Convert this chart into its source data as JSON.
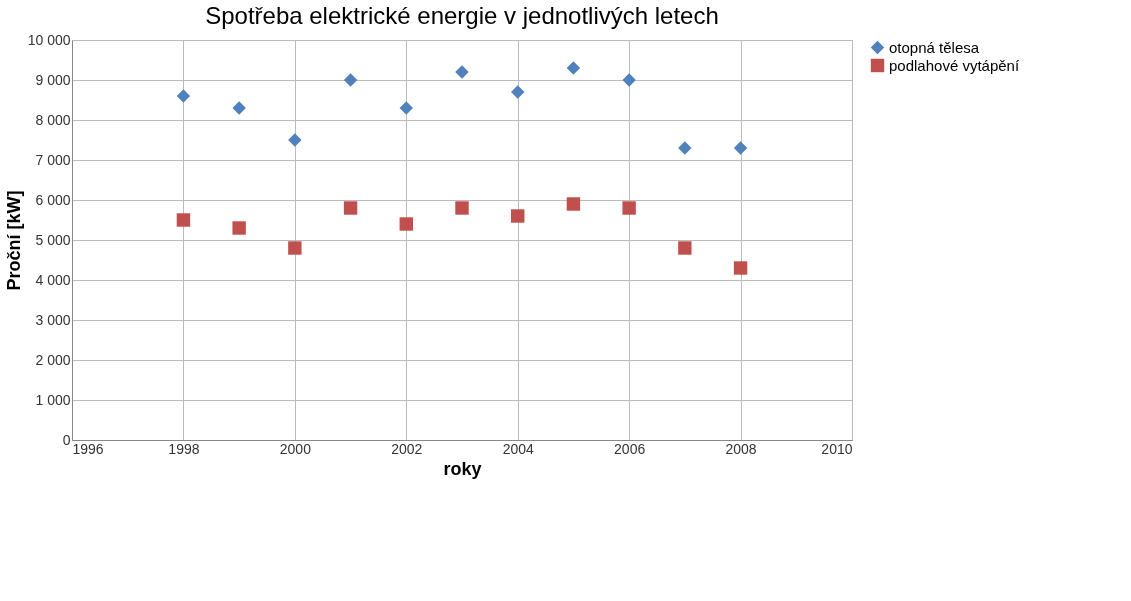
{
  "chart_data": {
    "type": "scatter",
    "title": "Spotřeba elektrické energie v jednotlivých letech",
    "xlabel": "roky",
    "ylabel": "Proční [kW]",
    "x": [
      1998,
      1999,
      2000,
      2001,
      2002,
      2003,
      2004,
      2005,
      2006,
      2007,
      2008
    ],
    "series": [
      {
        "name": "otopná tělesa",
        "color": "#4f81bd",
        "marker": "diamond",
        "values": [
          8600,
          8300,
          7500,
          9000,
          8300,
          9200,
          8700,
          9300,
          9000,
          7300,
          7300
        ]
      },
      {
        "name": "podlahové vytápění",
        "color": "#c0504d",
        "marker": "square",
        "values": [
          5500,
          5300,
          4800,
          5800,
          5400,
          5800,
          5600,
          5900,
          5800,
          4800,
          4300
        ]
      }
    ],
    "xlim": [
      1996,
      2010
    ],
    "xticks": [
      1996,
      1998,
      2000,
      2002,
      2004,
      2006,
      2008,
      2010
    ],
    "ylim": [
      0,
      10000
    ],
    "yticks": [
      0,
      {
        "value": 1000,
        "label": "1 000"
      },
      {
        "value": 2000,
        "label": "2 000"
      },
      {
        "value": 3000,
        "label": "3 000"
      },
      {
        "value": 4000,
        "label": "4 000"
      },
      {
        "value": 5000,
        "label": "5 000"
      },
      {
        "value": 6000,
        "label": "6 000"
      },
      {
        "value": 7000,
        "label": "7 000"
      },
      {
        "value": 8000,
        "label": "8 000"
      },
      {
        "value": 9000,
        "label": "9 000"
      },
      {
        "value": 10000,
        "label": "10 000"
      }
    ],
    "grid": true,
    "legend": "right"
  }
}
